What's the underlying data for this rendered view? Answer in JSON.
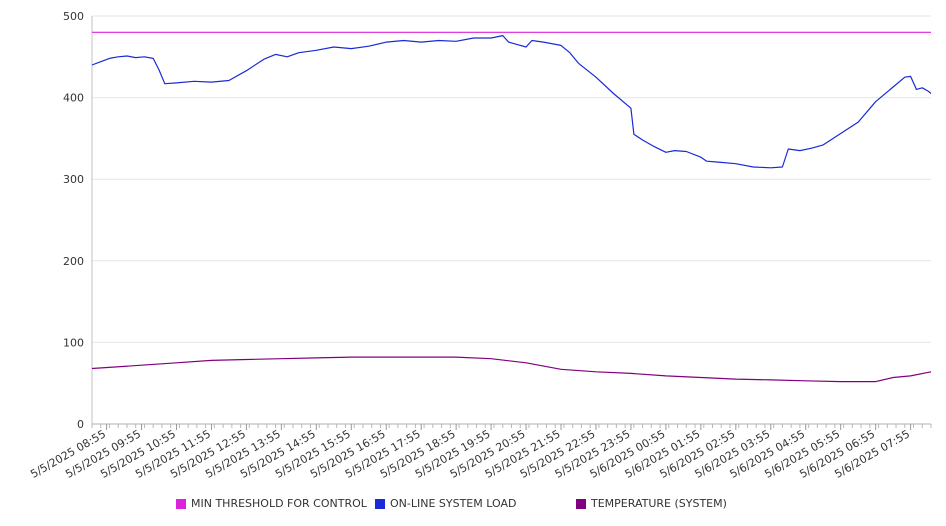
{
  "chart_data": {
    "type": "line",
    "ylim": [
      0,
      500
    ],
    "y_ticks": [
      "0",
      "100",
      "200",
      "300",
      "400",
      "500"
    ],
    "grid": true,
    "legend_position": "bottom",
    "x_tick_labels": [
      "5/5/2025 08:55",
      "5/5/2025 09:55",
      "5/5/2025 10:55",
      "5/5/2025 11:55",
      "5/5/2025 12:55",
      "5/5/2025 13:55",
      "5/5/2025 14:55",
      "5/5/2025 15:55",
      "5/5/2025 16:55",
      "5/5/2025 17:55",
      "5/5/2025 18:55",
      "5/5/2025 19:55",
      "5/5/2025 20:55",
      "5/5/2025 21:55",
      "5/5/2025 22:55",
      "5/5/2025 23:55",
      "5/6/2025 00:55",
      "5/6/2025 01:55",
      "5/6/2025 02:55",
      "5/6/2025 03:55",
      "5/6/2025 04:55",
      "5/6/2025 05:55",
      "5/6/2025 06:55",
      "5/6/2025 07:55"
    ],
    "x_start": "5/5/2025 08:30",
    "x_end": "5/6/2025 08:30",
    "series": [
      {
        "name": "MIN THRESHOLD FOR CONTROL",
        "color": "#dd22dd",
        "points": [
          [
            "5/5/2025 08:30",
            480
          ],
          [
            "5/6/2025 08:30",
            480
          ]
        ]
      },
      {
        "name": "ON-LINE SYSTEM LOAD",
        "color": "#1a2ad6",
        "points": [
          [
            "5/5/2025 08:30",
            440
          ],
          [
            "5/5/2025 08:45",
            444
          ],
          [
            "5/5/2025 09:00",
            448
          ],
          [
            "5/5/2025 09:15",
            450
          ],
          [
            "5/5/2025 09:30",
            451
          ],
          [
            "5/5/2025 09:45",
            449
          ],
          [
            "5/5/2025 10:00",
            450
          ],
          [
            "5/5/2025 10:15",
            448
          ],
          [
            "5/5/2025 10:25",
            434
          ],
          [
            "5/5/2025 10:35",
            417
          ],
          [
            "5/5/2025 10:55",
            418
          ],
          [
            "5/5/2025 11:25",
            420
          ],
          [
            "5/5/2025 11:55",
            419
          ],
          [
            "5/5/2025 12:25",
            421
          ],
          [
            "5/5/2025 12:55",
            433
          ],
          [
            "5/5/2025 13:25",
            447
          ],
          [
            "5/5/2025 13:45",
            453
          ],
          [
            "5/5/2025 14:05",
            450
          ],
          [
            "5/5/2025 14:25",
            455
          ],
          [
            "5/5/2025 14:55",
            458
          ],
          [
            "5/5/2025 15:25",
            462
          ],
          [
            "5/5/2025 15:55",
            460
          ],
          [
            "5/5/2025 16:25",
            463
          ],
          [
            "5/5/2025 16:55",
            468
          ],
          [
            "5/5/2025 17:25",
            470
          ],
          [
            "5/5/2025 17:55",
            468
          ],
          [
            "5/5/2025 18:25",
            470
          ],
          [
            "5/5/2025 18:55",
            469
          ],
          [
            "5/5/2025 19:25",
            473
          ],
          [
            "5/5/2025 19:55",
            473
          ],
          [
            "5/5/2025 20:15",
            476
          ],
          [
            "5/5/2025 20:25",
            468
          ],
          [
            "5/5/2025 20:40",
            465
          ],
          [
            "5/5/2025 20:55",
            462
          ],
          [
            "5/5/2025 21:05",
            470
          ],
          [
            "5/5/2025 21:25",
            468
          ],
          [
            "5/5/2025 21:55",
            464
          ],
          [
            "5/5/2025 22:10",
            455
          ],
          [
            "5/5/2025 22:25",
            442
          ],
          [
            "5/5/2025 22:55",
            425
          ],
          [
            "5/5/2025 23:25",
            405
          ],
          [
            "5/5/2025 23:55",
            387
          ],
          [
            "5/6/2025 00:00",
            355
          ],
          [
            "5/6/2025 00:15",
            348
          ],
          [
            "5/6/2025 00:35",
            340
          ],
          [
            "5/6/2025 00:55",
            333
          ],
          [
            "5/6/2025 01:10",
            335
          ],
          [
            "5/6/2025 01:30",
            334
          ],
          [
            "5/6/2025 01:55",
            327
          ],
          [
            "5/6/2025 02:05",
            322
          ],
          [
            "5/6/2025 02:25",
            321
          ],
          [
            "5/6/2025 02:55",
            319
          ],
          [
            "5/6/2025 03:25",
            315
          ],
          [
            "5/6/2025 03:55",
            314
          ],
          [
            "5/6/2025 04:15",
            315
          ],
          [
            "5/6/2025 04:25",
            337
          ],
          [
            "5/6/2025 04:45",
            335
          ],
          [
            "5/6/2025 05:05",
            338
          ],
          [
            "5/6/2025 05:25",
            342
          ],
          [
            "5/6/2025 05:55",
            356
          ],
          [
            "5/6/2025 06:25",
            370
          ],
          [
            "5/6/2025 06:55",
            395
          ],
          [
            "5/6/2025 07:25",
            413
          ],
          [
            "5/6/2025 07:45",
            425
          ],
          [
            "5/6/2025 07:55",
            426
          ],
          [
            "5/6/2025 08:05",
            410
          ],
          [
            "5/6/2025 08:15",
            412
          ],
          [
            "5/6/2025 08:25",
            408
          ],
          [
            "5/6/2025 08:30",
            405
          ]
        ]
      },
      {
        "name": "TEMPERATURE (SYSTEM)",
        "color": "#800080",
        "points": [
          [
            "5/5/2025 08:30",
            68
          ],
          [
            "5/5/2025 09:55",
            72
          ],
          [
            "5/5/2025 10:55",
            75
          ],
          [
            "5/5/2025 11:55",
            78
          ],
          [
            "5/5/2025 12:55",
            79
          ],
          [
            "5/5/2025 13:55",
            80
          ],
          [
            "5/5/2025 14:55",
            81
          ],
          [
            "5/5/2025 15:55",
            82
          ],
          [
            "5/5/2025 16:55",
            82
          ],
          [
            "5/5/2025 17:55",
            82
          ],
          [
            "5/5/2025 18:55",
            82
          ],
          [
            "5/5/2025 19:55",
            80
          ],
          [
            "5/5/2025 20:55",
            75
          ],
          [
            "5/5/2025 21:55",
            67
          ],
          [
            "5/5/2025 22:55",
            64
          ],
          [
            "5/5/2025 23:55",
            62
          ],
          [
            "5/6/2025 00:55",
            59
          ],
          [
            "5/6/2025 01:55",
            57
          ],
          [
            "5/6/2025 02:55",
            55
          ],
          [
            "5/6/2025 03:55",
            54
          ],
          [
            "5/6/2025 04:55",
            53
          ],
          [
            "5/6/2025 05:55",
            52
          ],
          [
            "5/6/2025 06:55",
            52
          ],
          [
            "5/6/2025 07:25",
            57
          ],
          [
            "5/6/2025 07:55",
            59
          ],
          [
            "5/6/2025 08:30",
            64
          ]
        ]
      }
    ]
  }
}
